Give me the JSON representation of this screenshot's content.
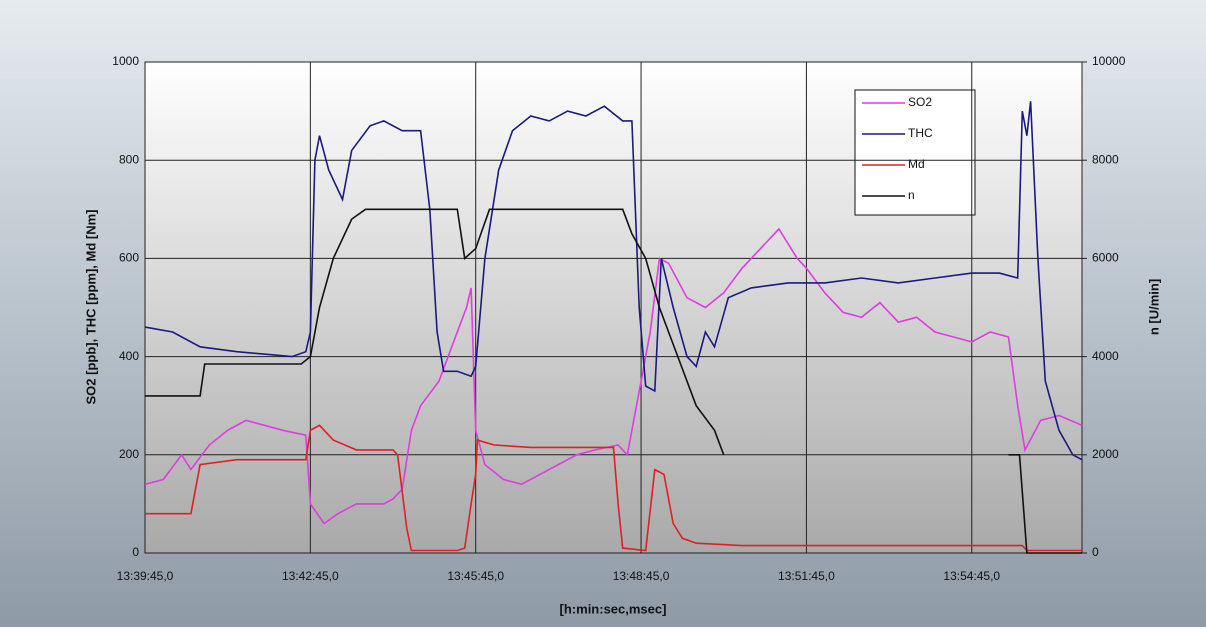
{
  "chart_data": {
    "type": "line",
    "ylabel": "SO2 [ppb], THC [ppm], Md [Nm]",
    "y2label": "n [U/min]",
    "xlabel": "[h:min:sec,msec]",
    "xlim": [
      0,
      1020
    ],
    "xticks": [
      {
        "value": 0,
        "label": "13:39:45,0"
      },
      {
        "value": 180,
        "label": "13:42:45,0"
      },
      {
        "value": 360,
        "label": "13:45:45,0"
      },
      {
        "value": 540,
        "label": "13:48:45,0"
      },
      {
        "value": 720,
        "label": "13:51:45,0"
      },
      {
        "value": 900,
        "label": "13:54:45,0"
      }
    ],
    "ylim": [
      0,
      1000
    ],
    "yticks": [
      0,
      200,
      400,
      600,
      800,
      1000
    ],
    "y2lim": [
      0,
      10000
    ],
    "y2ticks": [
      0,
      2000,
      4000,
      6000,
      8000,
      10000
    ],
    "grid": true,
    "legend": "upper right",
    "series": [
      {
        "name": "SO2",
        "color": "#e03ce0",
        "x": [
          0,
          20,
          40,
          50,
          70,
          90,
          110,
          130,
          150,
          175,
          180,
          195,
          210,
          230,
          260,
          270,
          280,
          290,
          300,
          320,
          330,
          340,
          350,
          355,
          360,
          370,
          390,
          410,
          430,
          450,
          470,
          490,
          515,
          525,
          540,
          550,
          560,
          570,
          590,
          610,
          630,
          650,
          670,
          690,
          710,
          720,
          740,
          760,
          780,
          800,
          820,
          840,
          860,
          880,
          900,
          920,
          940,
          950,
          958,
          975,
          995,
          1020
        ],
        "values": [
          140,
          150,
          200,
          170,
          220,
          250,
          270,
          260,
          250,
          240,
          100,
          60,
          80,
          100,
          100,
          110,
          130,
          250,
          300,
          350,
          400,
          450,
          500,
          540,
          250,
          180,
          150,
          140,
          160,
          180,
          200,
          210,
          220,
          200,
          350,
          450,
          600,
          590,
          520,
          500,
          530,
          580,
          620,
          660,
          600,
          580,
          530,
          490,
          480,
          510,
          470,
          480,
          450,
          440,
          430,
          450,
          440,
          300,
          210,
          270,
          280,
          260
        ]
      },
      {
        "name": "THC",
        "color": "#1a1a80",
        "x": [
          0,
          30,
          60,
          100,
          160,
          175,
          180,
          185,
          190,
          200,
          215,
          225,
          245,
          260,
          280,
          300,
          310,
          318,
          325,
          340,
          355,
          360,
          370,
          385,
          400,
          420,
          440,
          460,
          480,
          500,
          520,
          530,
          538,
          545,
          555,
          562,
          575,
          590,
          600,
          610,
          620,
          635,
          660,
          700,
          740,
          780,
          820,
          860,
          900,
          930,
          950,
          955,
          960,
          964,
          972,
          980,
          995,
          1010,
          1020
        ],
        "values": [
          460,
          450,
          420,
          410,
          400,
          410,
          450,
          800,
          850,
          780,
          720,
          820,
          870,
          880,
          860,
          860,
          700,
          450,
          370,
          370,
          360,
          380,
          600,
          780,
          860,
          890,
          880,
          900,
          890,
          910,
          880,
          880,
          500,
          340,
          330,
          600,
          500,
          400,
          380,
          450,
          420,
          520,
          540,
          550,
          550,
          560,
          550,
          560,
          570,
          570,
          560,
          900,
          850,
          920,
          600,
          350,
          250,
          200,
          190
        ]
      },
      {
        "name": "Md",
        "color": "#e02020",
        "x": [
          0,
          50,
          60,
          100,
          175,
          180,
          190,
          205,
          230,
          270,
          275,
          285,
          290,
          340,
          348,
          355,
          360,
          362,
          380,
          420,
          500,
          510,
          515,
          520,
          545,
          555,
          565,
          575,
          585,
          600,
          650,
          800,
          900,
          955,
          960,
          1020
        ],
        "values": [
          80,
          80,
          180,
          190,
          190,
          250,
          260,
          230,
          210,
          210,
          200,
          50,
          5,
          5,
          10,
          100,
          160,
          230,
          220,
          215,
          215,
          215,
          100,
          10,
          5,
          170,
          160,
          60,
          30,
          20,
          15,
          15,
          15,
          15,
          5,
          5
        ]
      },
      {
        "name": "n",
        "color": "#111111",
        "axis": "y2",
        "x": [
          0,
          60,
          65,
          170,
          180,
          190,
          205,
          225,
          240,
          340,
          348,
          360,
          375,
          520,
          530,
          545,
          560,
          580,
          600,
          620,
          630,
          640,
          940,
          952,
          960,
          1020
        ],
        "values": [
          3200,
          3200,
          3850,
          3850,
          4000,
          5000,
          6000,
          6800,
          7000,
          7000,
          6000,
          6200,
          7000,
          7000,
          6500,
          6000,
          5000,
          4000,
          3000,
          2500,
          2000,
          null,
          2000,
          2000,
          0,
          0
        ]
      }
    ]
  }
}
